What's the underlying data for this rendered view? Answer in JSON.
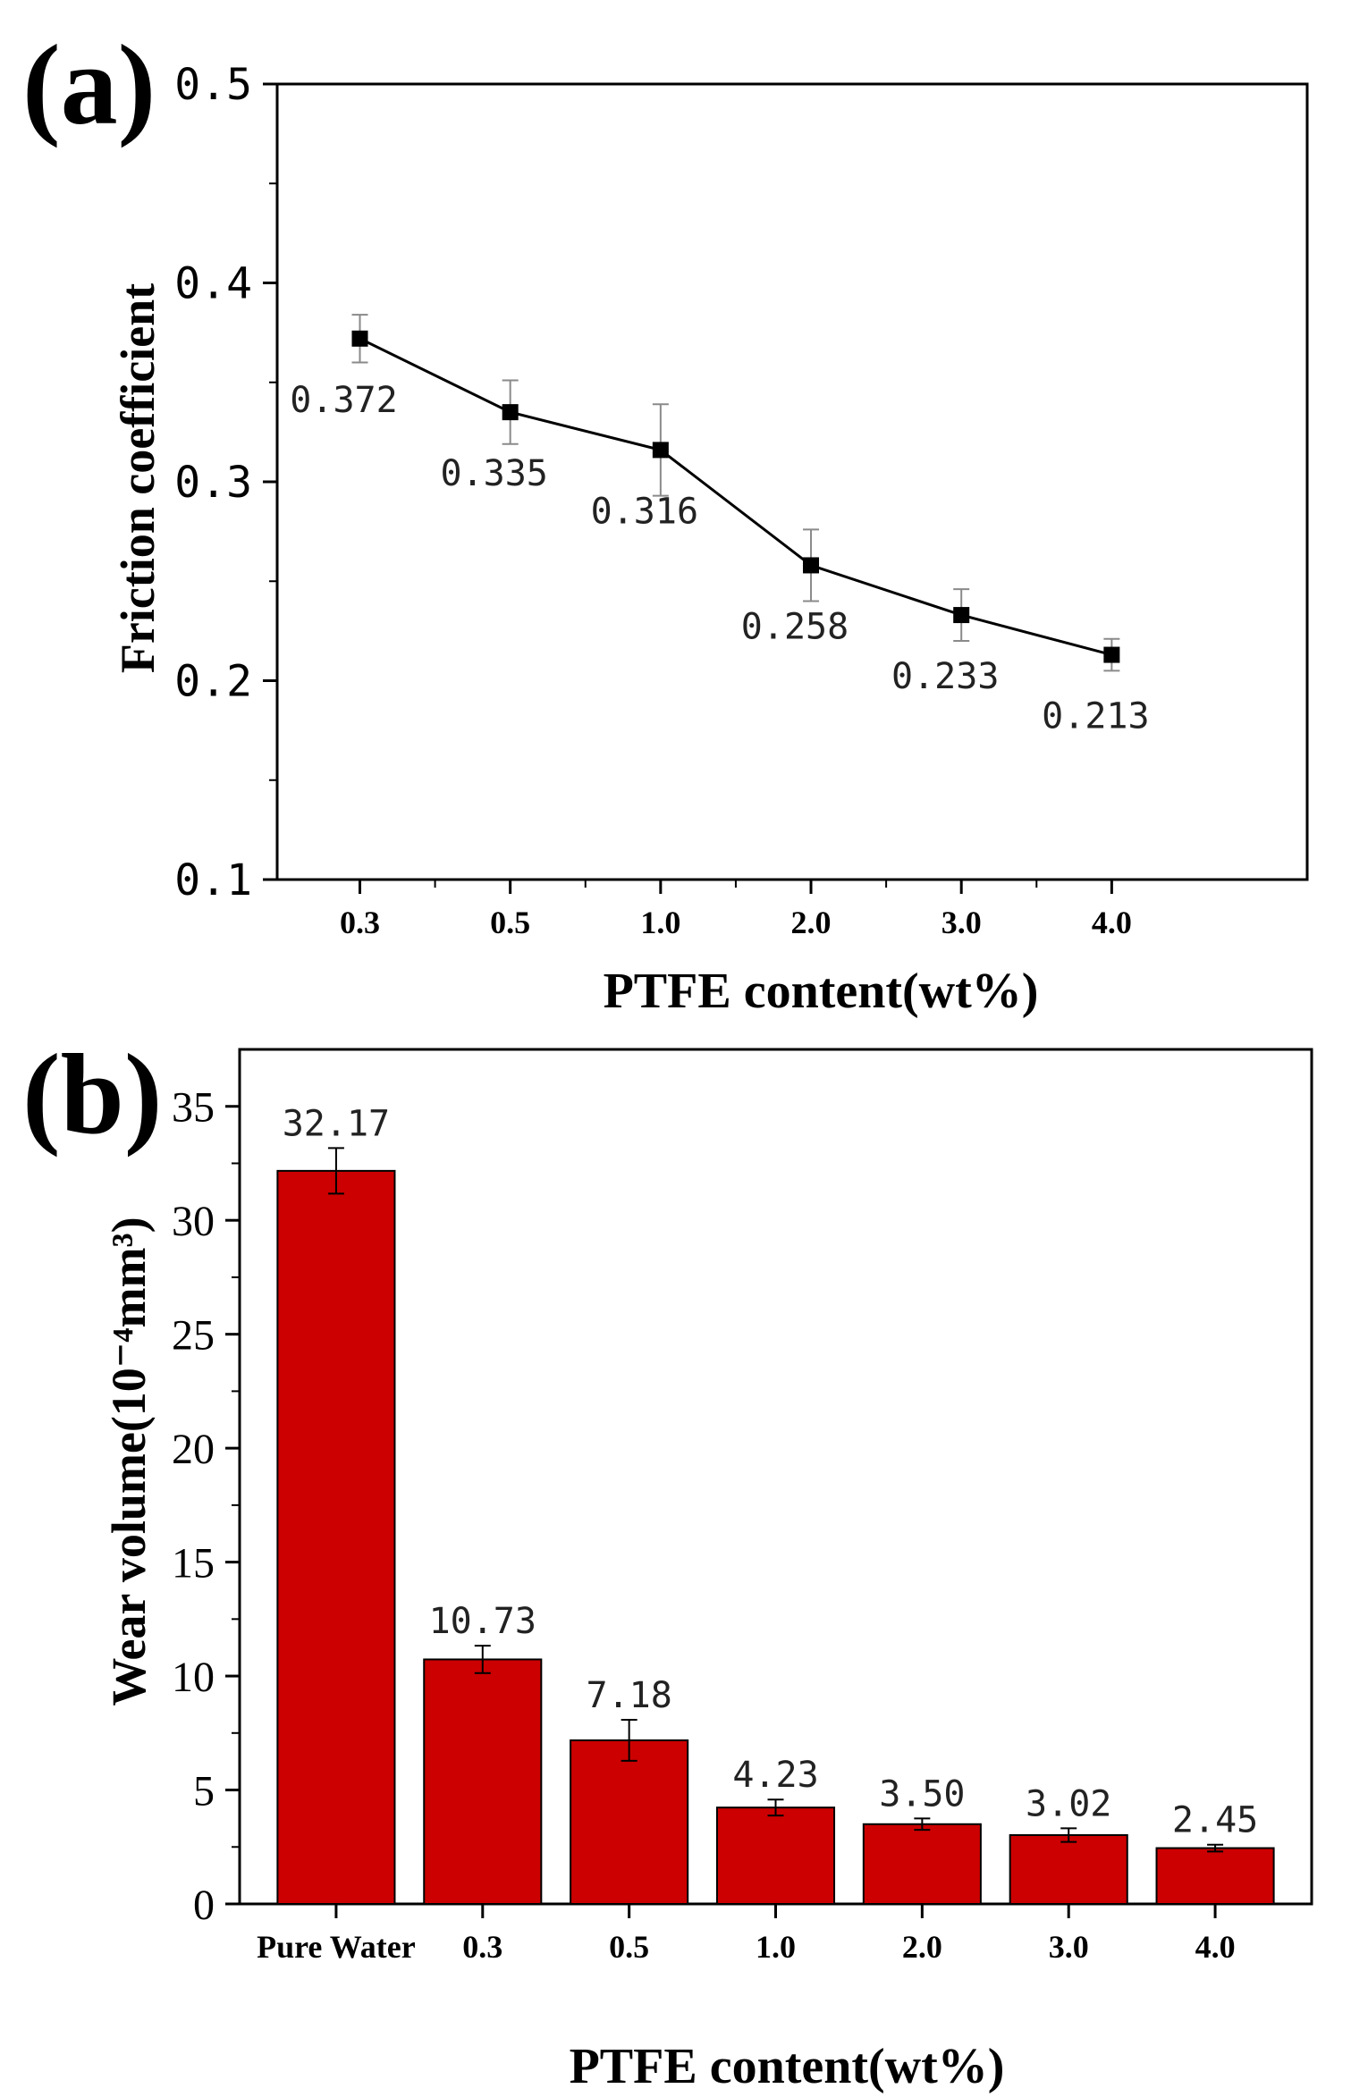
{
  "chart_data": [
    {
      "panel_label": "(a)",
      "type": "line",
      "title": "",
      "xlabel": "PTFE content(wt%)",
      "ylabel": "Friction coefficient",
      "categories": [
        "0.3",
        "0.5",
        "1.0",
        "2.0",
        "3.0",
        "4.0"
      ],
      "values": [
        0.372,
        0.335,
        0.316,
        0.258,
        0.233,
        0.213
      ],
      "errors": [
        0.012,
        0.016,
        0.023,
        0.018,
        0.013,
        0.008
      ],
      "data_labels": [
        "0.372",
        "0.335",
        "0.316",
        "0.258",
        "0.233",
        "0.213"
      ],
      "ylim": [
        0.1,
        0.5
      ],
      "yticks": [
        0.1,
        0.2,
        0.3,
        0.4,
        0.5
      ],
      "ytick_labels": [
        "0.1",
        "0.2",
        "0.3",
        "0.4",
        "0.5"
      ],
      "marker": "square",
      "color": "#000000",
      "grid": false,
      "legend": "none"
    },
    {
      "panel_label": "(b)",
      "type": "bar",
      "title": "",
      "xlabel": "PTFE content(wt%)",
      "ylabel": "Wear volume(10⁻⁴mm³)",
      "categories": [
        "Pure Water",
        "0.3",
        "0.5",
        "1.0",
        "2.0",
        "3.0",
        "4.0"
      ],
      "values": [
        32.17,
        10.73,
        7.18,
        4.23,
        3.5,
        3.02,
        2.45
      ],
      "errors": [
        1.0,
        0.6,
        0.9,
        0.35,
        0.25,
        0.3,
        0.15
      ],
      "data_labels": [
        "32.17",
        "10.73",
        "7.18",
        "4.23",
        "3.50",
        "3.02",
        "2.45"
      ],
      "ylim": [
        0,
        37.5
      ],
      "yticks": [
        0,
        5,
        10,
        15,
        20,
        25,
        30,
        35
      ],
      "ytick_labels": [
        "0",
        "5",
        "10",
        "15",
        "20",
        "25",
        "30",
        "35"
      ],
      "color": "#cc0000",
      "grid": false,
      "legend": "none"
    }
  ]
}
